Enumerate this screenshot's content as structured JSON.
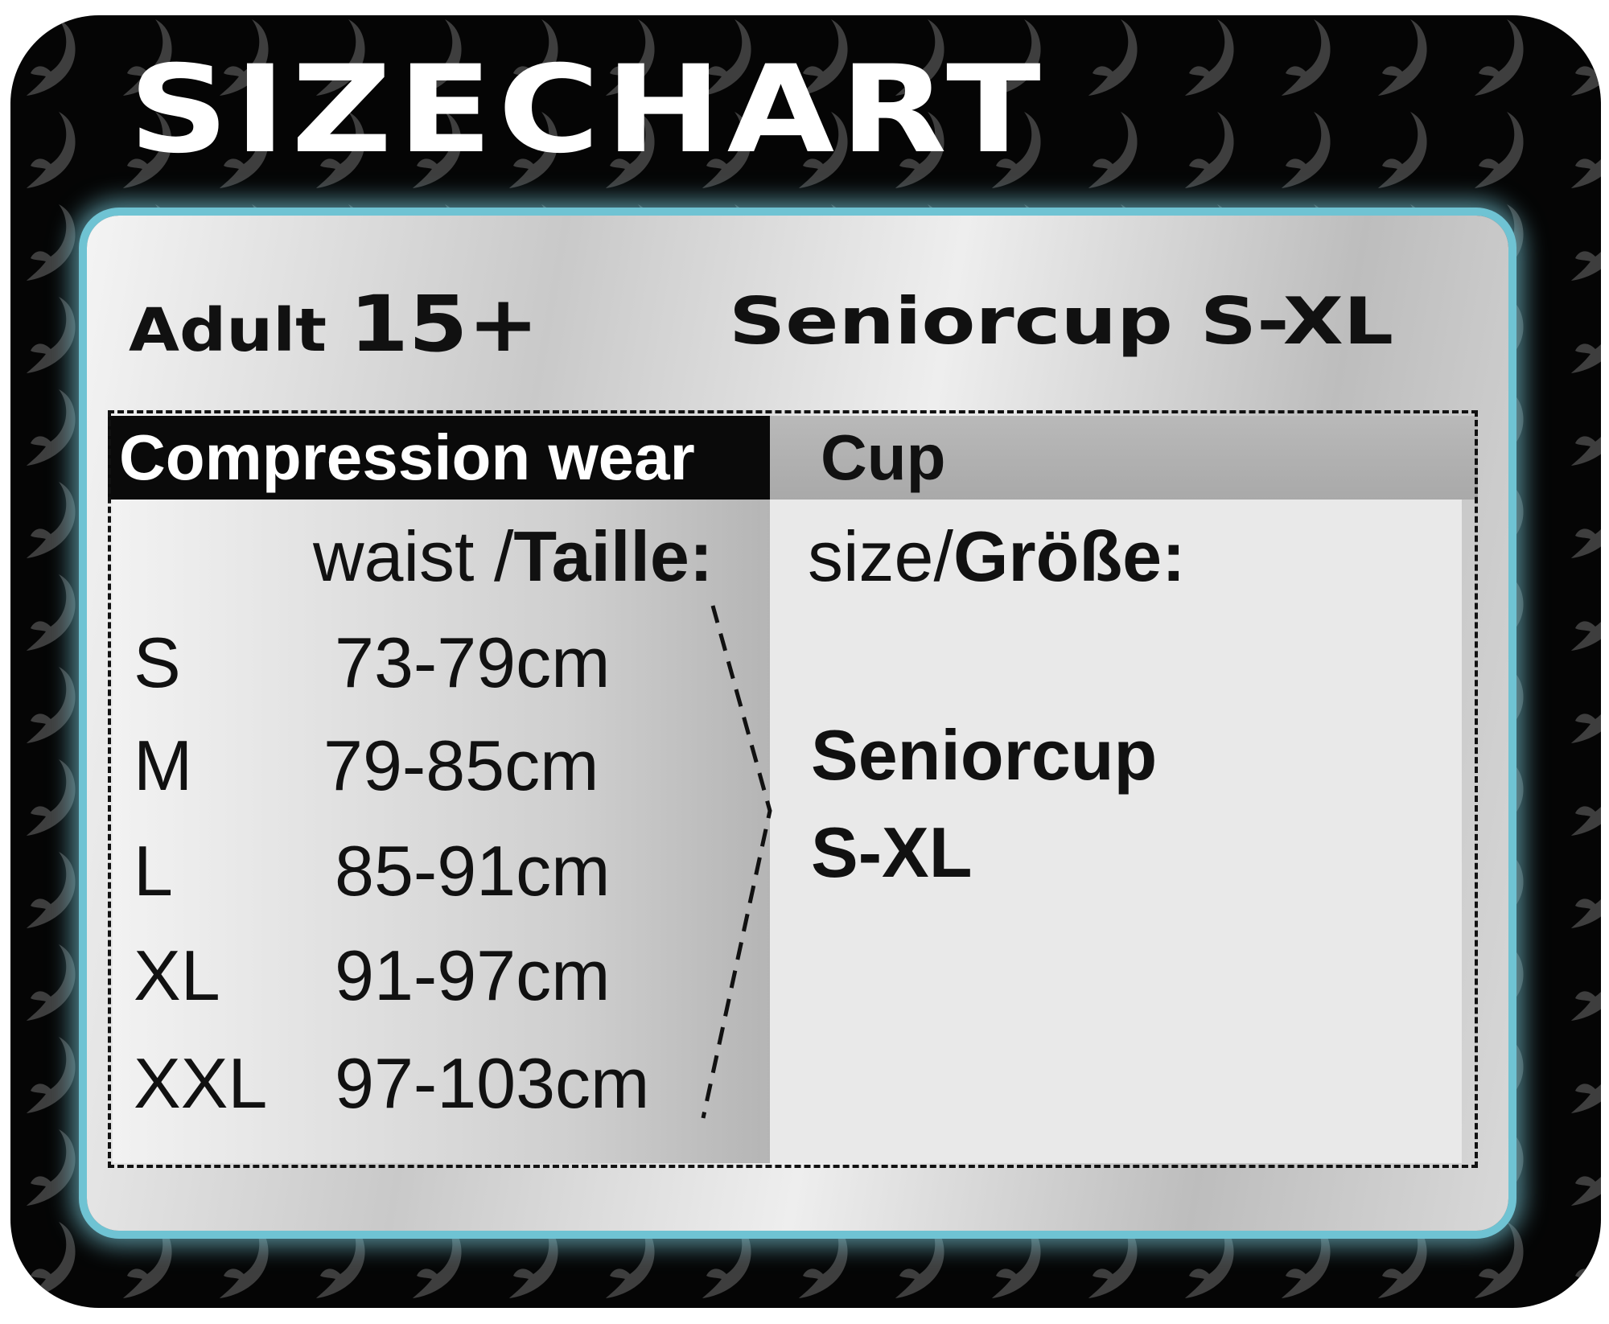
{
  "title": "SIZECHART",
  "subtitle": {
    "adult_label": "Adult",
    "age": "15+",
    "product": "Seniorcup S-XL"
  },
  "table": {
    "left_header": "Compression wear",
    "right_header": "Cup",
    "left_col_label_en": "waist /",
    "left_col_label_de": "Taille:",
    "right_col_label_en": "size/",
    "right_col_label_de": "Größe:",
    "rows": [
      {
        "size": "S",
        "waist": "73-79cm"
      },
      {
        "size": "M",
        "waist": "79-85cm"
      },
      {
        "size": "L",
        "waist": "85-91cm"
      },
      {
        "size": "XL",
        "waist": "91-97cm"
      },
      {
        "size": "XXL",
        "waist": "97-103cm"
      }
    ],
    "cup_line1": "Seniorcup",
    "cup_line2": "S-XL"
  },
  "colors": {
    "frame": "#050505",
    "pattern": "#3e3e3e",
    "glow": "#6fc3d3"
  }
}
